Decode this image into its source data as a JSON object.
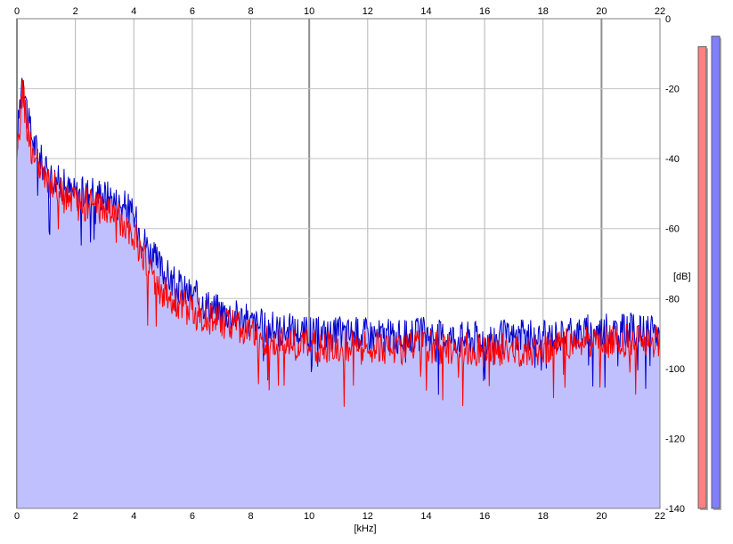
{
  "chart_data": {
    "type": "area",
    "title": "",
    "xlabel": "[kHz]",
    "ylabel": "[dB]",
    "xlim": [
      0,
      22
    ],
    "ylim": [
      -140,
      0
    ],
    "x_ticks": [
      0,
      2,
      4,
      6,
      8,
      10,
      12,
      14,
      16,
      18,
      20,
      22
    ],
    "y_ticks": [
      0,
      -20,
      -40,
      -60,
      -80,
      -100,
      -120,
      -140
    ],
    "grid": true,
    "series": [
      {
        "color": "#0000cc",
        "fill": "#c0c0ff",
        "x": [
          0,
          0.1,
          0.2,
          0.3,
          0.4,
          0.6,
          0.8,
          1.0,
          1.2,
          1.5,
          1.8,
          2.0,
          2.3,
          2.6,
          2.9,
          3.2,
          3.5,
          3.8,
          4.0,
          4.2,
          4.4,
          4.6,
          4.8,
          5.0,
          5.3,
          5.6,
          6.0,
          6.4,
          6.8,
          7.2,
          7.6,
          8.0,
          8.5,
          9.0,
          9.5,
          10.0,
          11.0,
          12.0,
          13.0,
          14.0,
          15.0,
          16.0,
          17.0,
          18.0,
          19.0,
          20.0,
          21.0,
          22.0
        ],
        "y": [
          -36,
          -24,
          -14,
          -22,
          -30,
          -36,
          -40,
          -44,
          -45,
          -47,
          -49,
          -50,
          -50,
          -49,
          -50,
          -51,
          -53,
          -54,
          -57,
          -60,
          -64,
          -67,
          -70,
          -72,
          -75,
          -77,
          -79,
          -81,
          -83,
          -84,
          -85,
          -87,
          -88,
          -89,
          -89,
          -90,
          -90,
          -90,
          -91,
          -90,
          -91,
          -91,
          -91,
          -91,
          -90,
          -89,
          -89,
          -90
        ]
      },
      {
        "color": "#ff0000",
        "x": [
          0,
          0.1,
          0.2,
          0.3,
          0.4,
          0.6,
          0.8,
          1.0,
          1.2,
          1.5,
          1.8,
          2.0,
          2.3,
          2.6,
          2.9,
          3.2,
          3.5,
          3.8,
          4.0,
          4.2,
          4.4,
          4.6,
          4.8,
          5.0,
          5.3,
          5.6,
          6.0,
          6.4,
          6.8,
          7.2,
          7.6,
          8.0,
          8.5,
          9.0,
          9.5,
          10.0,
          11.0,
          12.0,
          13.0,
          14.0,
          15.0,
          16.0,
          17.0,
          18.0,
          19.0,
          20.0,
          21.0,
          22.0
        ],
        "y": [
          -44,
          -30,
          -21,
          -27,
          -34,
          -40,
          -44,
          -47,
          -48,
          -50,
          -52,
          -53,
          -53,
          -53,
          -54,
          -55,
          -57,
          -59,
          -62,
          -66,
          -70,
          -73,
          -76,
          -78,
          -80,
          -82,
          -84,
          -85,
          -86,
          -87,
          -88,
          -90,
          -92,
          -93,
          -93,
          -94,
          -94,
          -94,
          -94,
          -94,
          -94,
          -95,
          -95,
          -94,
          -93,
          -92,
          -92,
          -92
        ]
      }
    ],
    "level_meters": [
      {
        "color": "#ff8080",
        "level_db": -8
      },
      {
        "color": "#8080ff",
        "level_db": -5
      }
    ]
  }
}
